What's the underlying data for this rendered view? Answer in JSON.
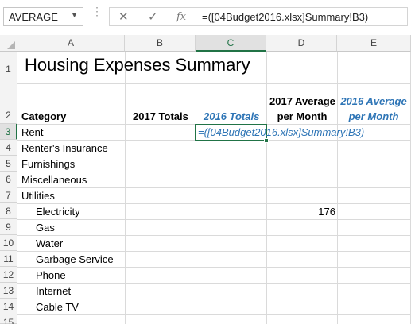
{
  "namebox": {
    "value": "AVERAGE",
    "dropdown_icon": "chevron-down-icon"
  },
  "formula_icons": {
    "cancel": "✕",
    "enter": "✓",
    "function": "fx"
  },
  "formula": "=([04Budget2016.xlsx]Summary!B3)",
  "columns": [
    "A",
    "B",
    "C",
    "D",
    "E"
  ],
  "rows": [
    "1",
    "2",
    "3",
    "4",
    "5",
    "6",
    "7",
    "8",
    "9",
    "10",
    "11",
    "12",
    "13",
    "14",
    "15"
  ],
  "cells": {
    "title": "Housing Expenses Summary",
    "a2": "Category",
    "b2": "2017 Totals",
    "c2": "2016 Totals",
    "d2_line1": "2017 Average",
    "d2_line2": "per Month",
    "e2_line1": "2016 Average",
    "e2_line2": "per Month",
    "a3": "Rent",
    "c3": "=([04Budget2016.xlsx]Summary!B3)",
    "a4": "Renter's Insurance",
    "a5": "Furnishings",
    "a6": "Miscellaneous",
    "a7": "Utilities",
    "a8": "Electricity",
    "d8": "176",
    "a9": "Gas",
    "a10": "Water",
    "a11": "Garbage Service",
    "a12": "Phone",
    "a13": "Internet",
    "a14": "Cable TV"
  }
}
